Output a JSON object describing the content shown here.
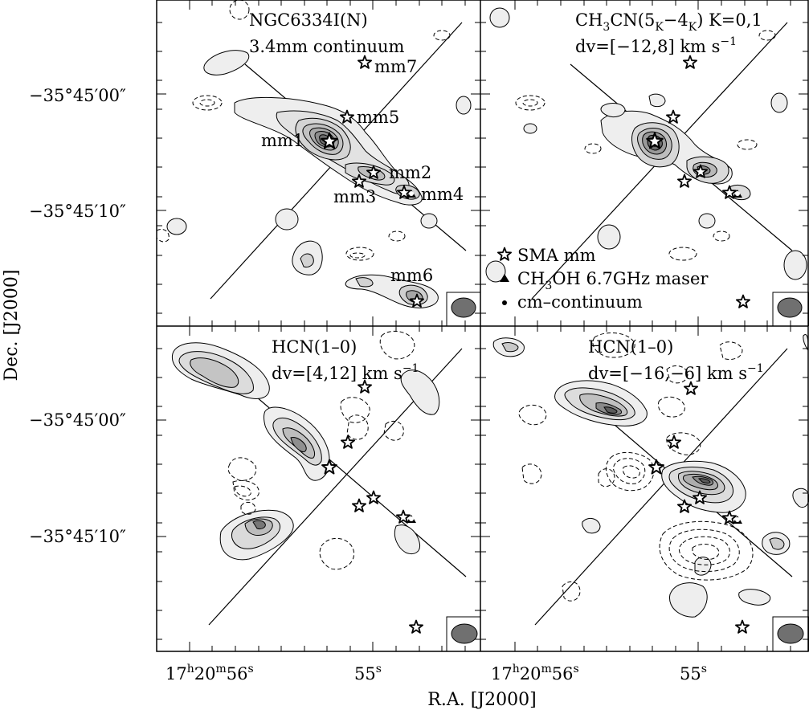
{
  "axes": {
    "ylabel": "Dec. [J2000]",
    "xlabel": "R.A. [J2000]",
    "yticks": [
      {
        "text": "−35°45′00″"
      },
      {
        "text": "−35°45′10″"
      },
      {
        "text": "−35°45′00″"
      },
      {
        "text": "−35°45′10″"
      }
    ],
    "xticks": [
      {
        "h": "17",
        "m": "20",
        "s": "56"
      },
      {
        "s": "55"
      },
      {
        "h": "17",
        "m": "20",
        "s": "56"
      },
      {
        "s": "55"
      }
    ]
  },
  "panels": [
    {
      "id": "tl",
      "title_line1": "NGC6334I(N)",
      "title_line2": "3.4mm continuum",
      "source_labels": [
        "mm7",
        "mm5",
        "mm1",
        "mm2",
        "mm3",
        "mm4",
        "mm6"
      ]
    },
    {
      "id": "tr",
      "title_line1": {
        "a": "CH",
        "a_sub": "3",
        "b": "CN(5",
        "b_sub": "K",
        "c": "−4",
        "c_sub": "K",
        "d": ") K=0,1"
      },
      "title_line2": {
        "a": "dv=[−12,8] km s",
        "sup": "−1"
      },
      "legend": [
        {
          "marker": "star",
          "text": "SMA mm"
        },
        {
          "marker": "triangle",
          "text_a": "CH",
          "sub": "3",
          "text_b": "OH 6.7GHz maser"
        },
        {
          "marker": "dot",
          "text": "cm–continuum"
        }
      ]
    },
    {
      "id": "bl",
      "title_line1": "HCN(1–0)",
      "title_line2": {
        "a": "dv=[4,12] km s",
        "sup": "−1"
      }
    },
    {
      "id": "br",
      "title_line1": "HCN(1–0)",
      "title_line2": {
        "a": "dv=[−16,−6] km s",
        "sup": "−1"
      }
    }
  ],
  "colors": {
    "frame": "#000000",
    "beam": "#707070",
    "contour_fill": "#e4e4e4"
  }
}
